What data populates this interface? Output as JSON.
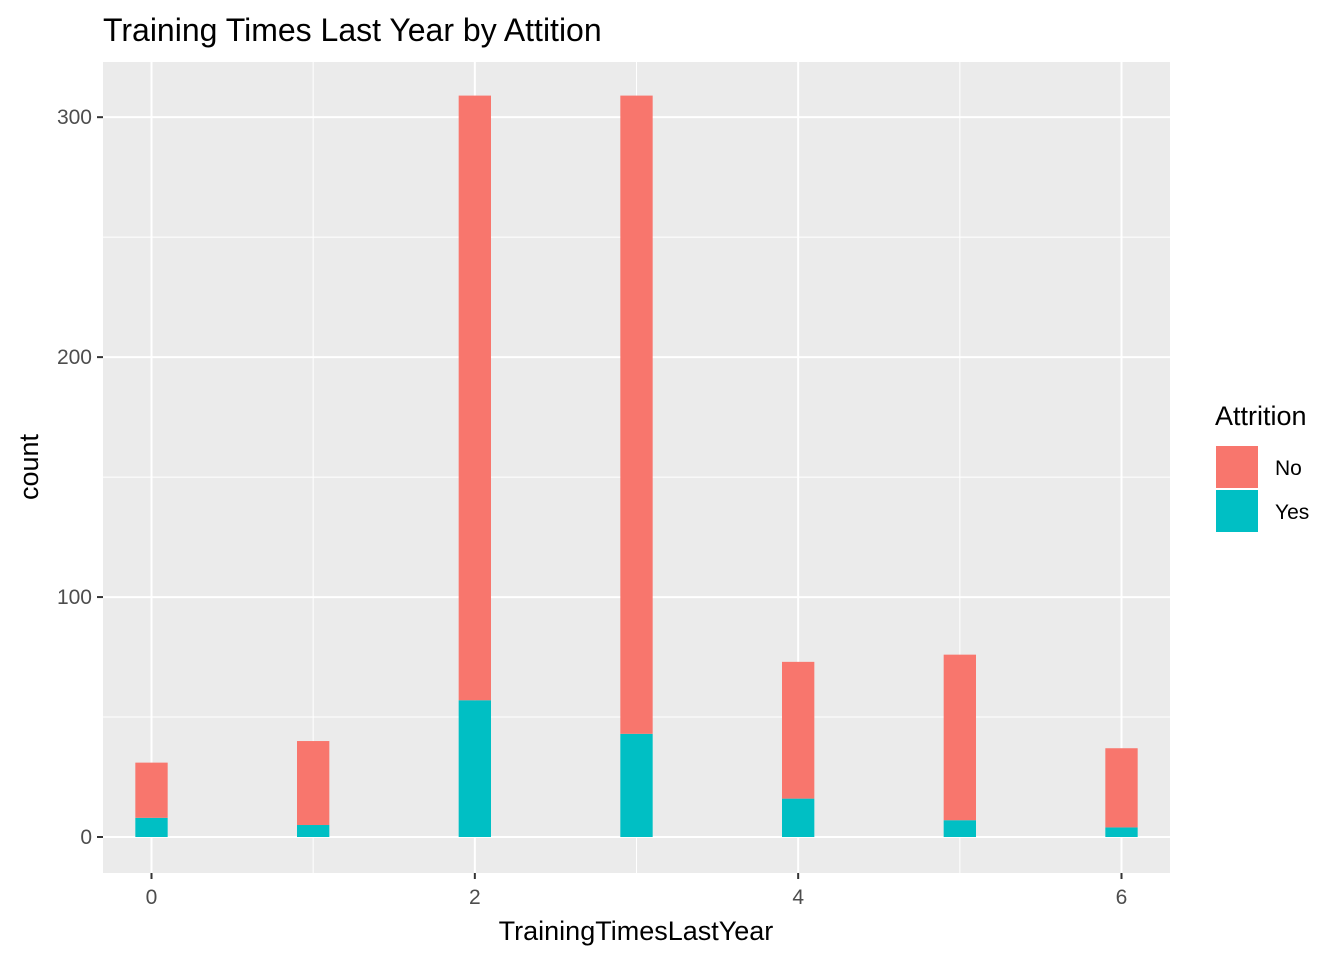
{
  "chart_data": {
    "type": "bar",
    "stacked": true,
    "title": "Training Times Last Year by Attition",
    "xlabel": "TrainingTimesLastYear",
    "ylabel": "count",
    "x": [
      0,
      1,
      2,
      3,
      4,
      5,
      6
    ],
    "xticks": [
      "0",
      "2",
      "4",
      "6"
    ],
    "yticks": [
      "0",
      "100",
      "200",
      "300"
    ],
    "xlim": [
      -0.3,
      6.3
    ],
    "ylim": [
      -15,
      323
    ],
    "grid": true,
    "legend": {
      "title": "Attrition",
      "placement": "right"
    },
    "series": [
      {
        "name": "No",
        "color": "#F8766D",
        "values": [
          23,
          35,
          252,
          266,
          57,
          69,
          33
        ]
      },
      {
        "name": "Yes",
        "color": "#00BFC4",
        "values": [
          8,
          5,
          57,
          43,
          16,
          7,
          4
        ]
      }
    ]
  }
}
